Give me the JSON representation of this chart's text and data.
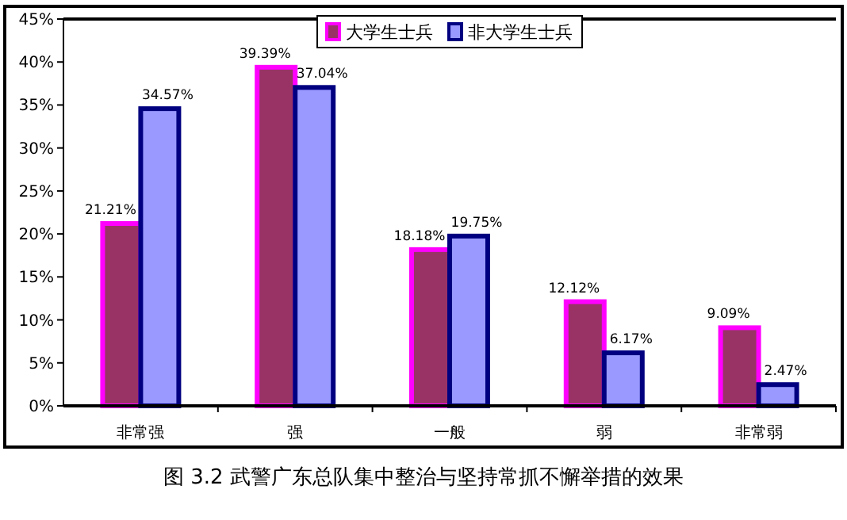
{
  "chart_data": {
    "type": "bar",
    "title": "图 3.2  武警广东总队集中整治与坚持常抓不懈举措的效果",
    "categories": [
      "非常强",
      "强",
      "一般",
      "弱",
      "非常弱"
    ],
    "series": [
      {
        "name": "大学生士兵",
        "color": "#993366",
        "values": [
          21.21,
          39.39,
          18.18,
          12.12,
          9.09
        ],
        "value_labels": [
          "21.21%",
          "39.39%",
          "18.18%",
          "12.12%",
          "9.09%"
        ]
      },
      {
        "name": "非大学生士兵",
        "color": "#9999ff",
        "values": [
          34.57,
          37.04,
          19.75,
          6.17,
          2.47
        ],
        "value_labels": [
          "34.57%",
          "37.04%",
          "19.75%",
          "6.17%",
          "2.47%"
        ]
      }
    ],
    "ylim": [
      0,
      45
    ],
    "yticks": [
      {
        "value": 0,
        "label": "0%"
      },
      {
        "value": 5,
        "label": "5%"
      },
      {
        "value": 10,
        "label": "10%"
      },
      {
        "value": 15,
        "label": "15%"
      },
      {
        "value": 20,
        "label": "20%"
      },
      {
        "value": 25,
        "label": "25%"
      },
      {
        "value": 30,
        "label": "30%"
      },
      {
        "value": 35,
        "label": "35%"
      },
      {
        "value": 40,
        "label": "40%"
      },
      {
        "value": 45,
        "label": "45%"
      }
    ],
    "legend": "top",
    "grid": false
  }
}
